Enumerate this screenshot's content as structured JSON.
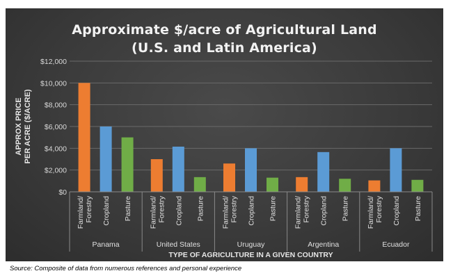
{
  "chart_data": {
    "type": "bar",
    "title": [
      "Approximate $/acre of Agricultural Land",
      "(U.S. and Latin America)"
    ],
    "ylabel": [
      "APPROX PRICE",
      "PER ACRE ($/ACRE)"
    ],
    "xlabel": "TYPE OF AGRICULTURE IN A GIVEN COUNTRY",
    "ylim": [
      0,
      12000
    ],
    "yticks": [
      "$0",
      "$2,000",
      "$4,000",
      "$6,000",
      "$8,000",
      "$10,000",
      "$12,000"
    ],
    "groups": [
      {
        "name": "Panama",
        "bars": [
          {
            "label": "Farmland/ Forestry",
            "value": 10000,
            "color": "#ed7d31"
          },
          {
            "label": "Cropland",
            "value": 6000,
            "color": "#5b9bd5"
          },
          {
            "label": "Pasture",
            "value": 5000,
            "color": "#70ad47"
          }
        ]
      },
      {
        "name": "United States",
        "bars": [
          {
            "label": "Farmland/ Forestry",
            "value": 3000,
            "color": "#ed7d31"
          },
          {
            "label": "Cropland",
            "value": 4150,
            "color": "#5b9bd5"
          },
          {
            "label": "Pasture",
            "value": 1350,
            "color": "#70ad47"
          }
        ]
      },
      {
        "name": "Uruguay",
        "bars": [
          {
            "label": "Farmland/ Forestry",
            "value": 2600,
            "color": "#ed7d31"
          },
          {
            "label": "Cropland",
            "value": 4000,
            "color": "#5b9bd5"
          },
          {
            "label": "Pasture",
            "value": 1300,
            "color": "#70ad47"
          }
        ]
      },
      {
        "name": "Argentina",
        "bars": [
          {
            "label": "Farmland/ Forestry",
            "value": 1350,
            "color": "#ed7d31"
          },
          {
            "label": "Cropland",
            "value": 3650,
            "color": "#5b9bd5"
          },
          {
            "label": "Pasture",
            "value": 1200,
            "color": "#70ad47"
          }
        ]
      },
      {
        "name": "Ecuador",
        "bars": [
          {
            "label": "Farmland/ Forestry",
            "value": 1050,
            "color": "#ed7d31"
          },
          {
            "label": "Cropland",
            "value": 4000,
            "color": "#5b9bd5"
          },
          {
            "label": "Pasture",
            "value": 1100,
            "color": "#70ad47"
          }
        ]
      }
    ],
    "grid": true,
    "legend": "none"
  },
  "footer": {
    "source": "Source: Composite of data from numerous references and personal experience"
  }
}
